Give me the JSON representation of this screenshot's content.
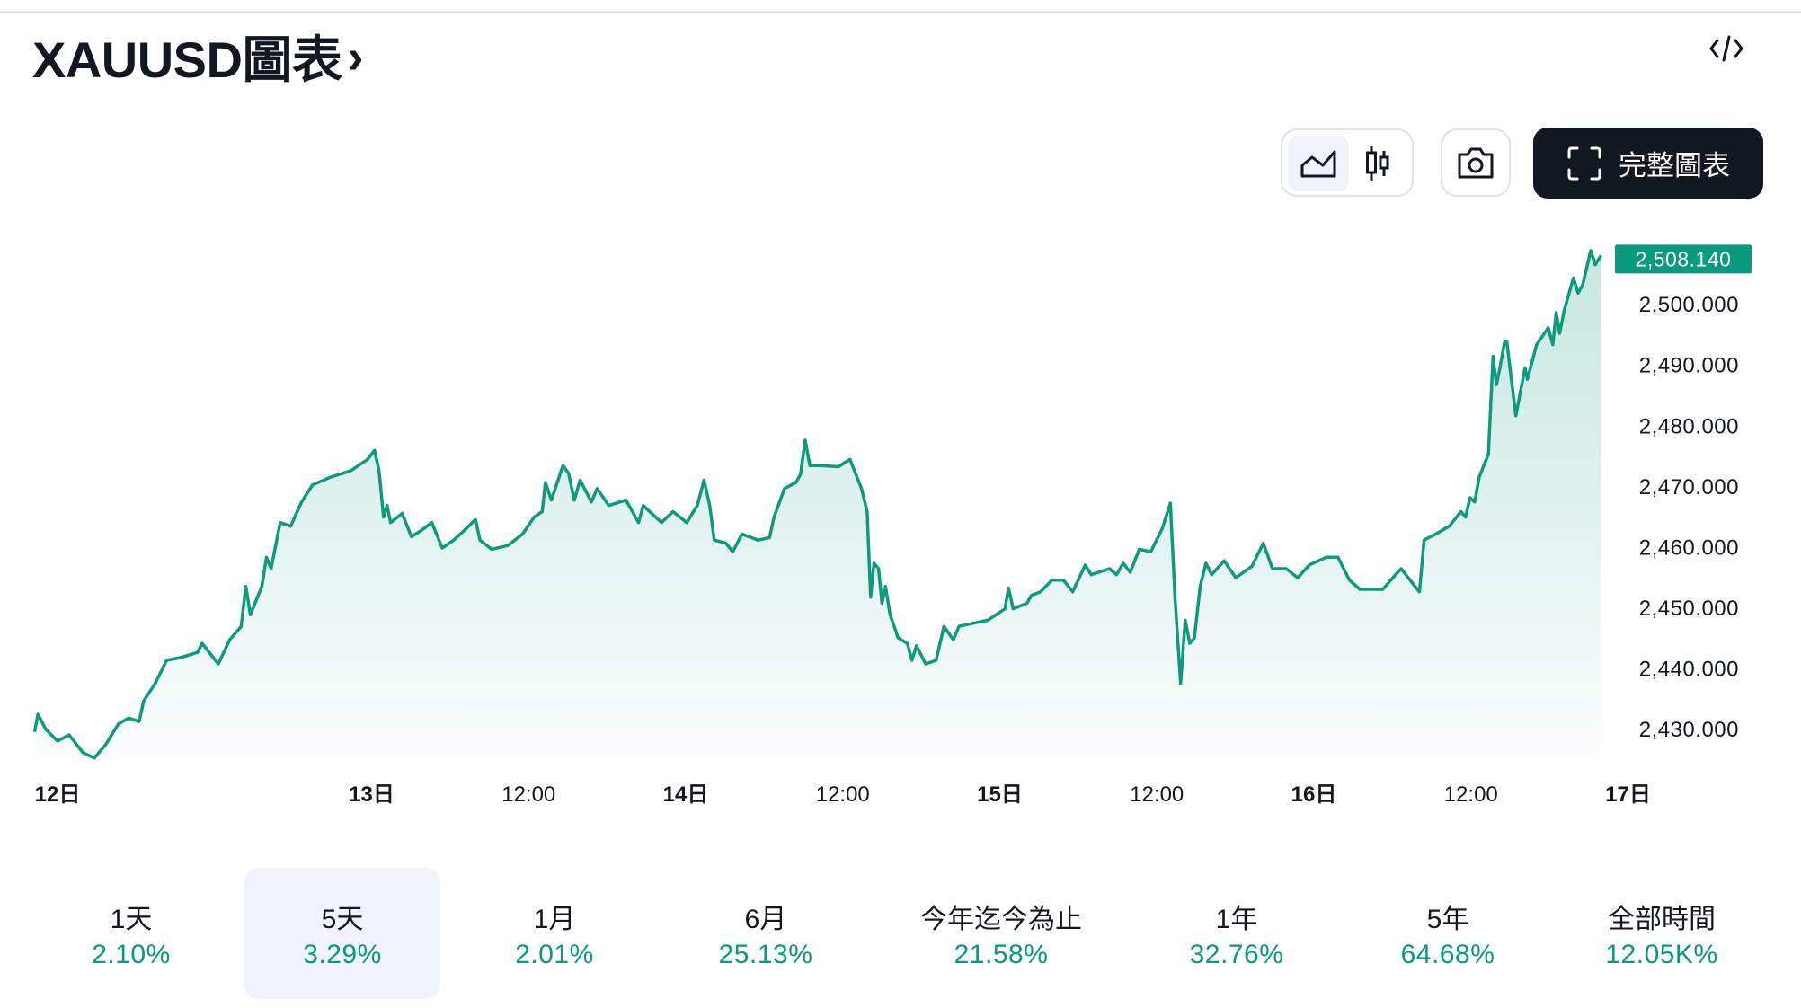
{
  "header": {
    "title": "XAUUSD圖表",
    "chevron": "›",
    "embed_icon": "code-icon"
  },
  "toolbar": {
    "chart_types": [
      {
        "icon": "area-chart-icon",
        "active": true
      },
      {
        "icon": "candlestick-icon",
        "active": false
      }
    ],
    "screenshot_icon": "camera-icon",
    "fullscreen_icon": "fullscreen-icon",
    "full_chart_label": "完整圖表"
  },
  "colors": {
    "line": "#0e9a7c",
    "tag": "#0a9a7e",
    "text": "#131722",
    "accent_positive": "#089981"
  },
  "chart_data": {
    "type": "area",
    "last_price_label": "2,508.140",
    "ylim": [
      2424,
      2512
    ],
    "y_ticks": [
      2430,
      2440,
      2450,
      2460,
      2470,
      2480,
      2490,
      2500
    ],
    "y_tick_labels": [
      "2,430.000",
      "2,440.000",
      "2,450.000",
      "2,460.000",
      "2,470.000",
      "2,480.000",
      "2,490.000",
      "2,500.000"
    ],
    "x_ticks": [
      {
        "label": "12日",
        "at": "12日 00:00",
        "bold": true
      },
      {
        "label": "13日",
        "at": "13日 00:00",
        "bold": true
      },
      {
        "label": "12:00",
        "at": "13日 12:00",
        "bold": false
      },
      {
        "label": "14日",
        "at": "14日 00:00",
        "bold": true
      },
      {
        "label": "12:00",
        "at": "14日 12:00",
        "bold": false
      },
      {
        "label": "15日",
        "at": "15日 00:00",
        "bold": true
      },
      {
        "label": "12:00",
        "at": "15日 12:00",
        "bold": false
      },
      {
        "label": "16日",
        "at": "16日 00:00",
        "bold": true
      },
      {
        "label": "12:00",
        "at": "16日 12:00",
        "bold": false
      },
      {
        "label": "17日",
        "at": "17日 00:00",
        "bold": true
      }
    ],
    "grid": false,
    "points": [
      [
        "11日 22:15",
        2429.6
      ],
      [
        "11日 22:30",
        2432.5
      ],
      [
        "11日 23:07",
        2430.0
      ],
      [
        "12日 00:00",
        2428.1
      ],
      [
        "12日 00:53",
        2429.1
      ],
      [
        "12日 01:56",
        2426.2
      ],
      [
        "12日 02:49",
        2425.3
      ],
      [
        "12日 03:41",
        2427.5
      ],
      [
        "12日 04:39",
        2430.9
      ],
      [
        "12日 05:26",
        2431.9
      ],
      [
        "12日 06:14",
        2431.3
      ],
      [
        "12日 06:35",
        2434.7
      ],
      [
        "12日 07:28",
        2437.6
      ],
      [
        "12日 08:20",
        2441.4
      ],
      [
        "12日 09:29",
        2441.9
      ],
      [
        "12日 10:42",
        2442.7
      ],
      [
        "12日 11:03",
        2444.2
      ],
      [
        "12日 12:17",
        2440.8
      ],
      [
        "12日 13:10",
        2444.8
      ],
      [
        "12日 14:02",
        2447.0
      ],
      [
        "12日 14:23",
        2453.6
      ],
      [
        "12日 14:44",
        2448.9
      ],
      [
        "12日 15:37",
        2453.6
      ],
      [
        "12日 15:58",
        2458.4
      ],
      [
        "12日 16:19",
        2456.5
      ],
      [
        "12日 17:01",
        2464.1
      ],
      [
        "12日 17:49",
        2463.5
      ],
      [
        "12日 18:36",
        2467.3
      ],
      [
        "12日 19:29",
        2470.3
      ],
      [
        "12日 20:53",
        2471.6
      ],
      [
        "12日 22:23",
        2472.6
      ],
      [
        "12日 23:41",
        2474.5
      ],
      [
        "13日 00:13",
        2476.0
      ],
      [
        "13日 00:34",
        2472.6
      ],
      [
        "13日 00:55",
        2465.0
      ],
      [
        "13日 01:11",
        2466.9
      ],
      [
        "13日 01:27",
        2464.1
      ],
      [
        "13日 02:20",
        2465.6
      ],
      [
        "13日 03:02",
        2461.8
      ],
      [
        "13日 03:44",
        2462.7
      ],
      [
        "13日 04:36",
        2464.1
      ],
      [
        "13日 05:24",
        2459.9
      ],
      [
        "13日 06:16",
        2461.2
      ],
      [
        "13日 07:14",
        2463.1
      ],
      [
        "13日 07:56",
        2464.6
      ],
      [
        "13日 08:17",
        2461.2
      ],
      [
        "13日 09:10",
        2459.7
      ],
      [
        "13日 10:24",
        2460.3
      ],
      [
        "13日 11:32",
        2462.2
      ],
      [
        "13日 12:25",
        2465.0
      ],
      [
        "13日 13:02",
        2465.9
      ],
      [
        "13日 13:17",
        2470.7
      ],
      [
        "13日 13:44",
        2467.8
      ],
      [
        "13日 14:37",
        2473.5
      ],
      [
        "13日 15:03",
        2472.2
      ],
      [
        "13日 15:29",
        2467.8
      ],
      [
        "13日 15:56",
        2471.1
      ],
      [
        "13日 16:48",
        2467.5
      ],
      [
        "13日 17:14",
        2469.7
      ],
      [
        "13日 18:07",
        2466.9
      ],
      [
        "13日 19:26",
        2467.8
      ],
      [
        "13日 20:24",
        2464.1
      ],
      [
        "13日 20:45",
        2466.9
      ],
      [
        "13日 22:09",
        2464.1
      ],
      [
        "13日 23:02",
        2465.9
      ],
      [
        "14日 00:05",
        2464.1
      ],
      [
        "14日 00:53",
        2466.9
      ],
      [
        "14日 01:24",
        2471.1
      ],
      [
        "14日 01:50",
        2466.9
      ],
      [
        "14日 02:11",
        2461.2
      ],
      [
        "14日 03:04",
        2460.7
      ],
      [
        "14日 03:36",
        2459.3
      ],
      [
        "14日 04:18",
        2462.2
      ],
      [
        "14日 05:32",
        2461.2
      ],
      [
        "14日 06:24",
        2461.6
      ],
      [
        "14日 06:45",
        2465.0
      ],
      [
        "14日 07:33",
        2469.7
      ],
      [
        "14日 08:25",
        2470.7
      ],
      [
        "14日 08:46",
        2472.0
      ],
      [
        "14日 09:08",
        2477.7
      ],
      [
        "14日 09:29",
        2473.5
      ],
      [
        "14日 10:21",
        2473.5
      ],
      [
        "14日 11:40",
        2473.3
      ],
      [
        "14日 12:33",
        2474.5
      ],
      [
        "14日 13:26",
        2469.7
      ],
      [
        "14日 13:52",
        2465.9
      ],
      [
        "14日 14:08",
        2451.8
      ],
      [
        "14日 14:23",
        2457.4
      ],
      [
        "14日 14:44",
        2456.5
      ],
      [
        "14日 15:00",
        2450.8
      ],
      [
        "14日 15:16",
        2453.6
      ],
      [
        "14日 15:37",
        2448.9
      ],
      [
        "14日 16:14",
        2445.1
      ],
      [
        "14日 16:56",
        2444.2
      ],
      [
        "14日 17:17",
        2441.4
      ],
      [
        "14日 17:38",
        2443.8
      ],
      [
        "14日 18:20",
        2440.8
      ],
      [
        "14日 19:08",
        2441.4
      ],
      [
        "14日 19:44",
        2447.0
      ],
      [
        "14日 20:27",
        2444.8
      ],
      [
        "14日 20:53",
        2447.0
      ],
      [
        "14日 22:12",
        2447.6
      ],
      [
        "14日 23:05",
        2448.0
      ],
      [
        "15日 00:24",
        2449.9
      ],
      [
        "15日 00:40",
        2453.3
      ],
      [
        "15日 01:01",
        2449.9
      ],
      [
        "15日 02:04",
        2450.8
      ],
      [
        "15日 02:25",
        2452.1
      ],
      [
        "15日 03:07",
        2452.7
      ],
      [
        "15日 03:59",
        2454.6
      ],
      [
        "15日 04:52",
        2454.6
      ],
      [
        "15日 05:34",
        2452.7
      ],
      [
        "15日 06:32",
        2457.1
      ],
      [
        "15日 06:59",
        2455.5
      ],
      [
        "15日 08:23",
        2456.5
      ],
      [
        "15日 08:55",
        2455.5
      ],
      [
        "15日 09:26",
        2457.4
      ],
      [
        "15日 09:58",
        2455.9
      ],
      [
        "15日 10:40",
        2459.7
      ],
      [
        "15日 11:32",
        2459.3
      ],
      [
        "15日 12:25",
        2463.1
      ],
      [
        "15日 13:02",
        2467.3
      ],
      [
        "15日 13:23",
        2451.8
      ],
      [
        "15日 13:49",
        2437.6
      ],
      [
        "15日 14:10",
        2448.0
      ],
      [
        "15日 14:31",
        2444.2
      ],
      [
        "15日 14:52",
        2445.1
      ],
      [
        "15日 15:19",
        2453.6
      ],
      [
        "15日 15:45",
        2457.4
      ],
      [
        "15日 16:11",
        2455.5
      ],
      [
        "15日 17:09",
        2457.8
      ],
      [
        "15日 18:02",
        2455.0
      ],
      [
        "15日 19:16",
        2456.9
      ],
      [
        "15日 20:08",
        2460.7
      ],
      [
        "15日 20:50",
        2456.5
      ],
      [
        "15日 21:53",
        2456.5
      ],
      [
        "15日 22:46",
        2455.0
      ],
      [
        "15日 23:39",
        2457.1
      ],
      [
        "16日 00:58",
        2458.4
      ],
      [
        "16日 01:50",
        2458.4
      ],
      [
        "16日 02:43",
        2454.6
      ],
      [
        "16日 03:31",
        2453.1
      ],
      [
        "16日 04:13",
        2453.1
      ],
      [
        "16日 05:16",
        2453.1
      ],
      [
        "16日 06:14",
        2455.5
      ],
      [
        "16日 06:40",
        2456.5
      ],
      [
        "16日 07:43",
        2453.6
      ],
      [
        "16日 08:04",
        2452.7
      ],
      [
        "16日 08:25",
        2461.2
      ],
      [
        "16日 09:18",
        2462.2
      ],
      [
        "16日 10:21",
        2463.5
      ],
      [
        "16日 11:14",
        2465.9
      ],
      [
        "16日 11:35",
        2465.0
      ],
      [
        "16日 11:56",
        2468.2
      ],
      [
        "16日 12:17",
        2467.5
      ],
      [
        "16日 12:38",
        2471.6
      ],
      [
        "16日 13:20",
        2475.4
      ],
      [
        "16日 13:41",
        2491.5
      ],
      [
        "16日 13:57",
        2486.8
      ],
      [
        "16日 14:13",
        2489.6
      ],
      [
        "16日 14:34",
        2493.8
      ],
      [
        "16日 14:44",
        2494.0
      ],
      [
        "16日 15:05",
        2487.7
      ],
      [
        "16日 15:26",
        2481.7
      ],
      [
        "16日 16:08",
        2489.6
      ],
      [
        "16日 16:19",
        2487.7
      ],
      [
        "16日 17:01",
        2493.4
      ],
      [
        "16日 17:54",
        2496.2
      ],
      [
        "16日 18:15",
        2493.4
      ],
      [
        "16日 18:31",
        2498.7
      ],
      [
        "16日 18:47",
        2495.3
      ],
      [
        "16日 19:08",
        2499.1
      ],
      [
        "16日 19:50",
        2504.4
      ],
      [
        "16日 20:11",
        2501.9
      ],
      [
        "16日 20:32",
        2503.2
      ],
      [
        "16日 21:09",
        2508.9
      ],
      [
        "16日 21:30",
        2506.6
      ],
      [
        "16日 21:56",
        2508.1
      ]
    ]
  },
  "periods": [
    {
      "label": "1天",
      "change": "2.10%",
      "active": false
    },
    {
      "label": "5天",
      "change": "3.29%",
      "active": true
    },
    {
      "label": "1月",
      "change": "2.01%",
      "active": false
    },
    {
      "label": "6月",
      "change": "25.13%",
      "active": false
    },
    {
      "label": "今年迄今為止",
      "change": "21.58%",
      "active": false
    },
    {
      "label": "1年",
      "change": "32.76%",
      "active": false
    },
    {
      "label": "5年",
      "change": "64.68%",
      "active": false
    },
    {
      "label": "全部時間",
      "change": "12.05K%",
      "active": false
    }
  ]
}
